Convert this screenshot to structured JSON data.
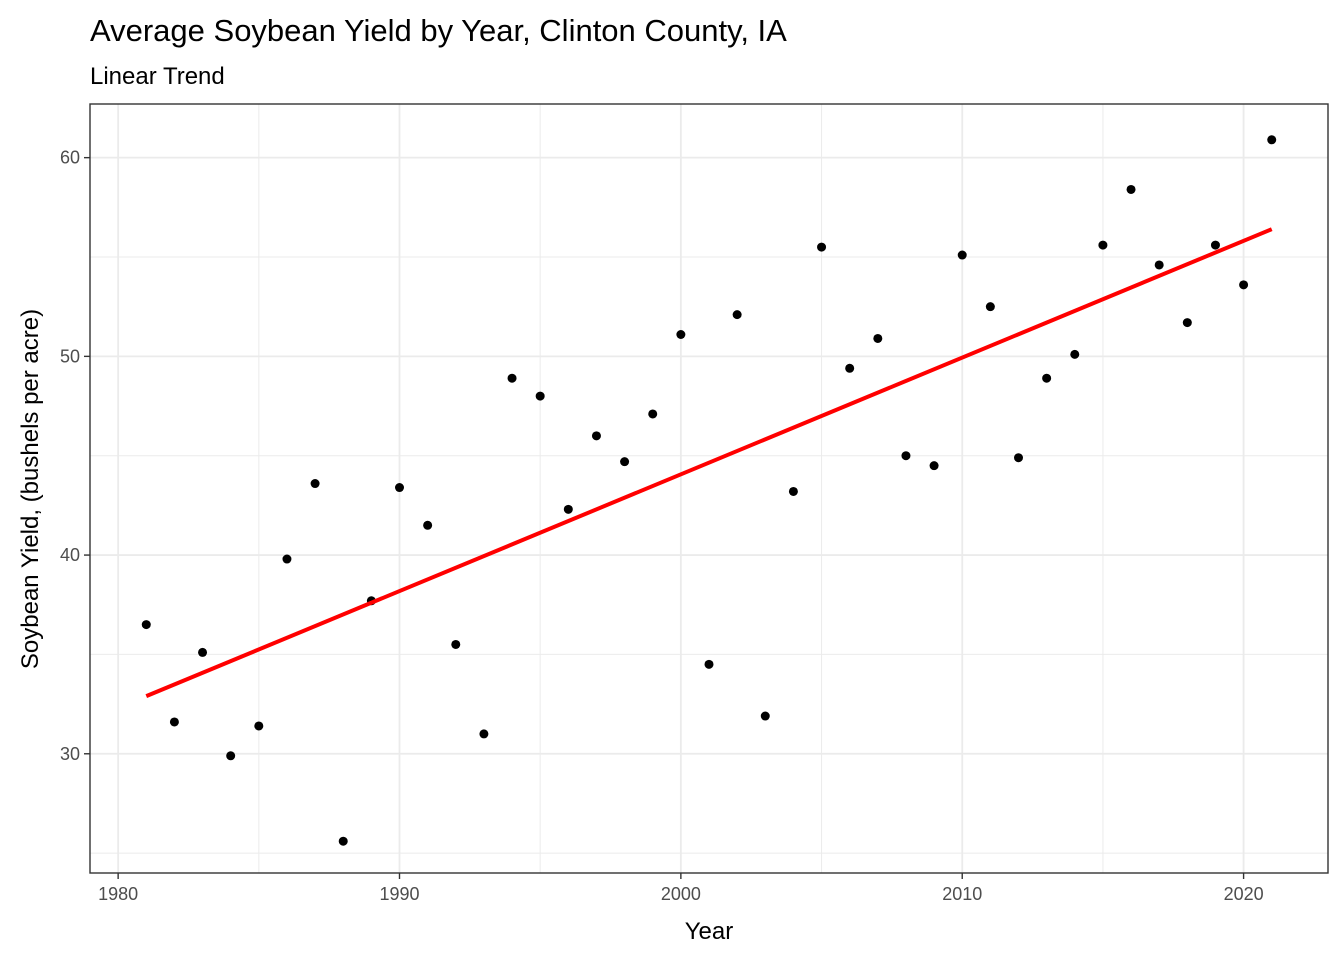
{
  "chart_data": {
    "type": "scatter",
    "title": "Average Soybean Yield by Year, Clinton County, IA",
    "subtitle": "Linear Trend",
    "xlabel": "Year",
    "ylabel": "Soybean Yield, (bushels per acre)",
    "xlim": [
      1979,
      2023
    ],
    "ylim": [
      24,
      62.7
    ],
    "x_ticks": [
      1980,
      1990,
      2000,
      2010,
      2020
    ],
    "y_ticks": [
      30,
      40,
      50,
      60
    ],
    "x_ticks_labels": [
      "1980",
      "1990",
      "2000",
      "2010",
      "2020"
    ],
    "y_ticks_labels": [
      "30",
      "40",
      "50",
      "60"
    ],
    "x_minor": [
      1985,
      1995,
      2005,
      2015
    ],
    "y_minor": [
      25,
      35,
      45,
      55
    ],
    "grid": true,
    "legend": "none",
    "points_color": "#000000",
    "trend_color": "#ff0000",
    "series": [
      {
        "name": "Yield",
        "x": [
          1981,
          1982,
          1983,
          1984,
          1985,
          1986,
          1987,
          1988,
          1989,
          1990,
          1991,
          1992,
          1993,
          1994,
          1995,
          1996,
          1997,
          1998,
          1999,
          2000,
          2001,
          2002,
          2003,
          2004,
          2005,
          2006,
          2007,
          2008,
          2009,
          2010,
          2011,
          2012,
          2013,
          2014,
          2015,
          2016,
          2017,
          2018,
          2019,
          2020,
          2021
        ],
        "y": [
          36.5,
          31.6,
          35.1,
          29.9,
          31.4,
          39.8,
          43.6,
          25.6,
          37.7,
          43.4,
          41.5,
          35.5,
          31.0,
          48.9,
          48.0,
          42.3,
          46.0,
          44.7,
          47.1,
          51.1,
          34.5,
          52.1,
          31.9,
          43.2,
          55.5,
          49.4,
          50.9,
          45.0,
          44.5,
          55.1,
          52.5,
          44.9,
          48.9,
          50.1,
          55.6,
          58.4,
          54.6,
          51.7,
          55.6,
          53.6,
          60.9
        ]
      }
    ],
    "trend_line": {
      "name": "Linear Trend",
      "x": [
        1981,
        2021
      ],
      "y": [
        32.9,
        56.4
      ]
    }
  }
}
